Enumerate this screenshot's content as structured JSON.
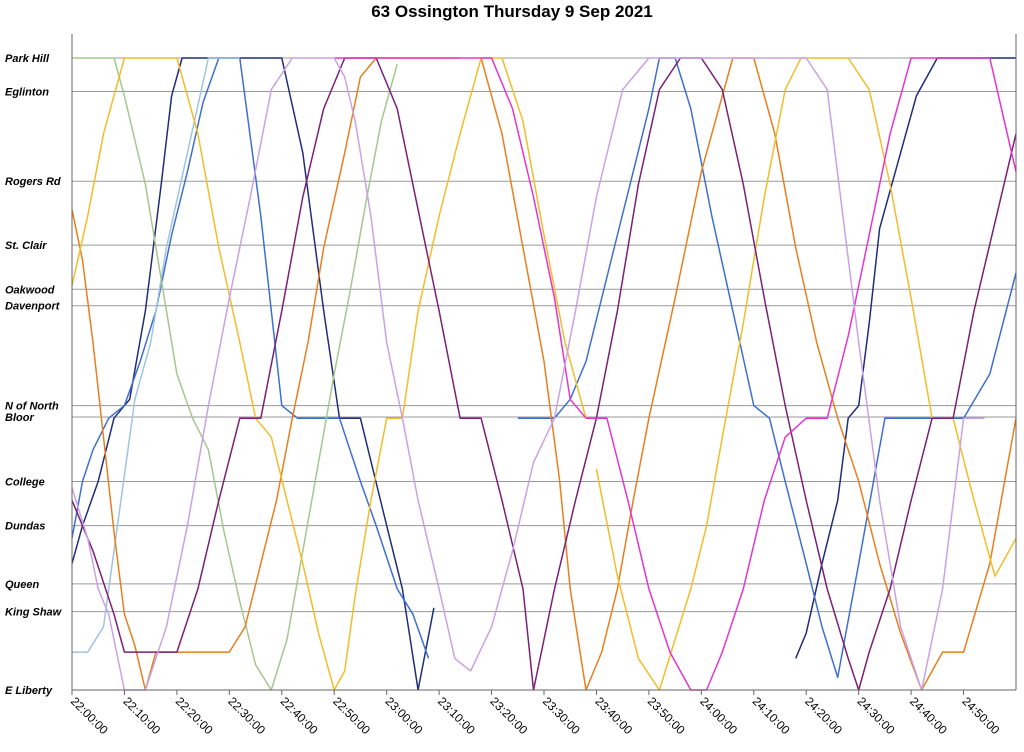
{
  "chart_data": {
    "type": "line",
    "title": "63 Ossington Thursday 9 Sep 2021",
    "xlabel": "",
    "ylabel": "",
    "x_unit": "minutes after 22:00",
    "xlim": [
      0,
      180
    ],
    "x_ticks": [
      {
        "value": 0,
        "label": "22:00:00"
      },
      {
        "value": 10,
        "label": "22:10:00"
      },
      {
        "value": 20,
        "label": "22:20:00"
      },
      {
        "value": 30,
        "label": "22:30:00"
      },
      {
        "value": 40,
        "label": "22:40:00"
      },
      {
        "value": 50,
        "label": "22:50:00"
      },
      {
        "value": 60,
        "label": "23:00:00"
      },
      {
        "value": 70,
        "label": "23:10:00"
      },
      {
        "value": 80,
        "label": "23:20:00"
      },
      {
        "value": 90,
        "label": "23:30:00"
      },
      {
        "value": 100,
        "label": "23:40:00"
      },
      {
        "value": 110,
        "label": "23:50:00"
      },
      {
        "value": 120,
        "label": "24:00:00"
      },
      {
        "value": 130,
        "label": "24:10:00"
      },
      {
        "value": 140,
        "label": "24:20:00"
      },
      {
        "value": 150,
        "label": "24:30:00"
      },
      {
        "value": 160,
        "label": "24:40:00"
      },
      {
        "value": 170,
        "label": "24:50:00"
      }
    ],
    "y_unit": "route position (0 = E Liberty, 100 = Park Hill)",
    "ylim": [
      0,
      100
    ],
    "stops": [
      {
        "name": "Park Hill",
        "pos": 100
      },
      {
        "name": "Eglinton",
        "pos": 94.7
      },
      {
        "name": "Rogers Rd",
        "pos": 80.5
      },
      {
        "name": "St. Clair",
        "pos": 70.4
      },
      {
        "name": "Oakwood",
        "pos": 63.4
      },
      {
        "name": "Davenport",
        "pos": 60.8
      },
      {
        "name": "N of North",
        "pos": 45.0
      },
      {
        "name": "Bloor",
        "pos": 43.2
      },
      {
        "name": "College",
        "pos": 33.0
      },
      {
        "name": "Dundas",
        "pos": 26.0
      },
      {
        "name": "Queen",
        "pos": 16.8
      },
      {
        "name": "King Shaw",
        "pos": 12.4
      },
      {
        "name": "E Liberty",
        "pos": 0
      }
    ],
    "grid": true,
    "legend": "none",
    "series": [
      {
        "name": "vehicle-1",
        "color": "#1f2d7a",
        "x": [
          0,
          2,
          5,
          8,
          11,
          14,
          17,
          19,
          21,
          28,
          40,
          44,
          48,
          51,
          55,
          60,
          63,
          66,
          69
        ],
        "y": [
          20,
          26,
          33,
          43,
          46,
          60,
          80,
          94,
          100,
          100,
          100,
          85,
          60,
          43,
          43,
          26,
          16,
          0,
          13
        ]
      },
      {
        "name": "vehicle-2",
        "color": "#1f2d7a",
        "x": [
          138,
          140,
          143,
          146,
          148,
          150,
          152,
          154,
          158,
          161,
          165,
          170,
          175,
          178,
          180
        ],
        "y": [
          5,
          9,
          20,
          30,
          43,
          45,
          58,
          73,
          85,
          94,
          100,
          100,
          100,
          100,
          100
        ]
      },
      {
        "name": "vehicle-3",
        "color": "#3e6fd0",
        "x": [
          0,
          2,
          4,
          7,
          10,
          13,
          16,
          19,
          22,
          25,
          28,
          32,
          36,
          40,
          43,
          47,
          51,
          55,
          58,
          62,
          65,
          68
        ],
        "y": [
          24,
          33,
          38,
          43,
          45,
          52,
          60,
          72,
          82,
          93,
          100,
          100,
          75,
          45,
          43,
          43,
          43,
          33,
          26,
          16,
          12,
          5
        ]
      },
      {
        "name": "vehicle-4",
        "color": "#3e6fd0",
        "x": [
          85,
          88,
          92,
          95,
          98,
          101,
          104,
          107,
          110,
          112,
          115,
          118,
          122,
          126,
          130,
          133,
          136,
          140,
          143,
          146,
          150,
          155,
          160,
          165,
          170,
          175,
          180
        ],
        "y": [
          43,
          43,
          43,
          46,
          52,
          62,
          72,
          82,
          92,
          100,
          100,
          92,
          75,
          60,
          45,
          43,
          33,
          20,
          10,
          2,
          20,
          43,
          43,
          43,
          43,
          50,
          66
        ]
      },
      {
        "name": "vehicle-5",
        "color": "#9fc4e3",
        "x": [
          0,
          3,
          6,
          9,
          12,
          15,
          18,
          22,
          26,
          30,
          32
        ],
        "y": [
          6,
          6,
          10,
          28,
          46,
          55,
          70,
          85,
          100,
          100,
          100
        ]
      },
      {
        "name": "vehicle-6",
        "color": "#a3c88d",
        "x": [
          0,
          8,
          10,
          14,
          17,
          20,
          23,
          26,
          29,
          32,
          35,
          38,
          41,
          44,
          47,
          50,
          53,
          56,
          59,
          62
        ],
        "y": [
          100,
          100,
          94,
          80,
          65,
          50,
          43,
          38,
          25,
          14,
          4,
          0,
          8,
          22,
          36,
          50,
          63,
          77,
          90,
          99
        ]
      },
      {
        "name": "vehicle-7",
        "color": "#e87f1e",
        "x": [
          0,
          2,
          4,
          6,
          8,
          10,
          12,
          14,
          16,
          18,
          20,
          25,
          30,
          33,
          36,
          39,
          42,
          45,
          48,
          52,
          55,
          58,
          62,
          66,
          70,
          74
        ],
        "y": [
          76,
          68,
          55,
          40,
          25,
          12,
          7,
          0,
          6,
          6,
          6,
          6,
          6,
          10,
          20,
          30,
          43,
          55,
          70,
          85,
          97,
          100,
          100,
          100,
          100,
          100
        ]
      },
      {
        "name": "vehicle-8",
        "color": "#e87f1e",
        "x": [
          78,
          82,
          86,
          90,
          93,
          95,
          98,
          101,
          104,
          107,
          110,
          115,
          120,
          126,
          130,
          134,
          138,
          142,
          146,
          150,
          154,
          158,
          162,
          166,
          170,
          175,
          180
        ],
        "y": [
          100,
          88,
          70,
          52,
          33,
          16,
          0,
          6,
          16,
          30,
          43,
          62,
          82,
          100,
          100,
          88,
          70,
          55,
          43,
          33,
          20,
          9,
          0,
          6,
          6,
          20,
          43
        ]
      },
      {
        "name": "vehicle-9",
        "color": "#f2bd2a",
        "x": [
          0,
          3,
          6,
          10,
          13,
          17,
          20,
          24,
          28,
          32,
          35,
          38,
          41,
          44,
          47,
          50,
          52,
          54,
          57,
          60,
          63,
          66,
          70,
          74,
          78,
          82,
          86,
          90,
          94,
          98
        ],
        "y": [
          64,
          75,
          88,
          100,
          100,
          100,
          100,
          88,
          70,
          55,
          43,
          40,
          30,
          20,
          9,
          0,
          3,
          15,
          30,
          43,
          43,
          60,
          75,
          88,
          100,
          100,
          90,
          72,
          55,
          43
        ]
      },
      {
        "name": "vehicle-10",
        "color": "#f2bd2a",
        "x": [
          100,
          104,
          108,
          112,
          115,
          118,
          121,
          124,
          128,
          132,
          136,
          139,
          142,
          145,
          148,
          152,
          156,
          160,
          164,
          168,
          172,
          176,
          180
        ],
        "y": [
          35,
          18,
          5,
          0,
          8,
          16,
          26,
          40,
          58,
          78,
          95,
          100,
          100,
          100,
          100,
          95,
          80,
          62,
          43,
          43,
          30,
          18,
          24
        ]
      },
      {
        "name": "vehicle-11",
        "color": "#7a2077",
        "x": [
          0,
          4,
          8,
          10,
          12,
          16,
          20,
          24,
          28,
          32,
          36,
          40,
          44,
          48,
          52,
          55,
          58,
          62,
          66,
          70,
          74,
          78,
          82,
          86,
          88,
          92,
          96,
          100,
          104,
          108,
          112,
          116,
          120
        ],
        "y": [
          30,
          22,
          12,
          6,
          6,
          6,
          6,
          16,
          30,
          43,
          43,
          60,
          78,
          92,
          100,
          100,
          100,
          92,
          76,
          60,
          43,
          43,
          30,
          16,
          0,
          16,
          30,
          43,
          60,
          80,
          95,
          100,
          100
        ]
      },
      {
        "name": "vehicle-12",
        "color": "#7a2077",
        "x": [
          120,
          124,
          128,
          132,
          136,
          140,
          144,
          148,
          150,
          152,
          156,
          160,
          164,
          168,
          172,
          176,
          180
        ],
        "y": [
          100,
          95,
          80,
          62,
          45,
          30,
          16,
          5,
          0,
          6,
          16,
          30,
          43,
          43,
          60,
          74,
          88
        ]
      },
      {
        "name": "vehicle-13",
        "color": "#e436cd",
        "x": [
          50,
          55,
          60,
          65,
          70,
          75,
          80,
          84,
          88,
          92,
          95,
          98,
          102,
          106,
          110,
          114,
          118,
          121,
          124,
          128,
          132,
          136,
          140,
          144,
          148,
          152,
          156,
          160,
          165,
          170,
          175,
          180
        ],
        "y": [
          100,
          100,
          100,
          100,
          100,
          100,
          100,
          92,
          78,
          62,
          46,
          43,
          43,
          30,
          16,
          6,
          0,
          0,
          6,
          16,
          30,
          40,
          43,
          43,
          56,
          72,
          88,
          100,
          100,
          100,
          100,
          82
        ]
      },
      {
        "name": "vehicle-14",
        "color": "#c9a2e6",
        "x": [
          0,
          3,
          5,
          7,
          10,
          14,
          18,
          22,
          26,
          30,
          34,
          38,
          42,
          46,
          50,
          52,
          54,
          57,
          60,
          63,
          66,
          70,
          73,
          76
        ],
        "y": [
          32,
          24,
          16,
          12,
          0,
          0,
          10,
          26,
          45,
          62,
          78,
          95,
          100,
          100,
          100,
          97,
          90,
          75,
          55,
          43,
          30,
          16,
          5,
          3
        ]
      },
      {
        "name": "vehicle-15",
        "color": "#c9a2e6",
        "x": [
          76,
          80,
          84,
          88,
          92,
          96,
          100,
          105,
          110,
          115,
          120,
          125,
          130,
          135,
          140,
          144,
          147,
          150,
          154,
          158,
          162,
          166,
          170,
          174
        ],
        "y": [
          3,
          10,
          22,
          36,
          43,
          60,
          78,
          95,
          100,
          100,
          100,
          100,
          100,
          100,
          100,
          95,
          75,
          55,
          30,
          10,
          0,
          16,
          43,
          43
        ]
      }
    ]
  }
}
